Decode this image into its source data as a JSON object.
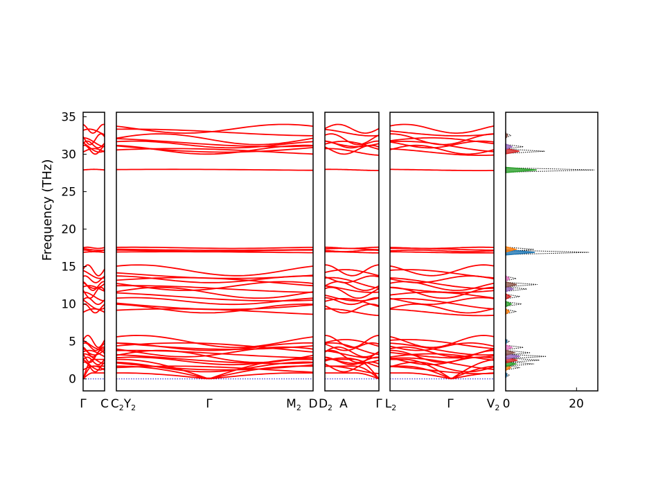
{
  "chart_data": {
    "type": "line",
    "title": "",
    "ylabel": "Frequency (THz)",
    "ylim": [
      -1.6,
      35.6
    ],
    "yticks": [
      0,
      5,
      10,
      15,
      20,
      25,
      30,
      35
    ],
    "band_color": "#ff0000",
    "zero_line_color": "#0000cc",
    "segments": [
      {
        "name": "seg1",
        "labels": [
          "Γ",
          "C"
        ]
      },
      {
        "name": "seg2",
        "labels": [
          "C2Y2",
          "Γ",
          "M2",
          "D"
        ]
      },
      {
        "name": "seg3",
        "labels": [
          "D2",
          "A",
          "Γ"
        ]
      },
      {
        "name": "seg4",
        "labels": [
          "L2",
          "Γ",
          "V2"
        ]
      }
    ],
    "branches": [
      {
        "name": "acoustic-1",
        "at_gamma": 0.0,
        "at_edge": 0.8
      },
      {
        "name": "acoustic-2",
        "at_gamma": 0.0,
        "at_edge": 1.3
      },
      {
        "name": "acoustic-3",
        "at_gamma": 0.0,
        "at_edge": 1.8
      },
      {
        "name": "low-optic",
        "values": [
          1.2,
          1.6,
          2.0,
          2.4,
          2.7,
          3.0,
          3.3,
          3.6,
          4.0,
          4.3,
          4.6,
          5.0
        ]
      },
      {
        "name": "mid-optic",
        "values": [
          8.9,
          9.4,
          10.0,
          10.4,
          11.0,
          11.5,
          12.0,
          12.4,
          12.8,
          13.3,
          14.0,
          14.5
        ]
      },
      {
        "name": "flat-17",
        "values": [
          16.9,
          17.1,
          17.3,
          17.5
        ]
      },
      {
        "name": "flat-28",
        "values": [
          27.9
        ]
      },
      {
        "name": "high-optic",
        "values": [
          30.3,
          30.6,
          31.0,
          31.3,
          31.6,
          32.0,
          32.9,
          33.4
        ]
      }
    ],
    "dos": {
      "xticks": [
        0,
        20
      ],
      "xlim": [
        0,
        26
      ],
      "peaks": [
        {
          "freq": 0.5,
          "value": 1.0
        },
        {
          "freq": 1.5,
          "value": 4.0
        },
        {
          "freq": 2.0,
          "value": 8.0
        },
        {
          "freq": 2.5,
          "value": 9.5
        },
        {
          "freq": 3.0,
          "value": 11.5
        },
        {
          "freq": 3.5,
          "value": 7.0
        },
        {
          "freq": 4.2,
          "value": 5.0
        },
        {
          "freq": 5.0,
          "value": 1.0
        },
        {
          "freq": 9.0,
          "value": 3.0
        },
        {
          "freq": 10.0,
          "value": 4.5
        },
        {
          "freq": 11.0,
          "value": 4.0
        },
        {
          "freq": 12.0,
          "value": 6.0
        },
        {
          "freq": 12.6,
          "value": 9.0
        },
        {
          "freq": 13.4,
          "value": 3.0
        },
        {
          "freq": 16.9,
          "value": 23.5
        },
        {
          "freq": 17.3,
          "value": 8.0
        },
        {
          "freq": 27.9,
          "value": 25.0
        },
        {
          "freq": 30.4,
          "value": 11.0
        },
        {
          "freq": 31.0,
          "value": 5.0
        },
        {
          "freq": 32.5,
          "value": 1.5
        }
      ],
      "projection_colors": [
        "#1f77b4",
        "#ff7f0e",
        "#2ca02c",
        "#d62728",
        "#9467bd",
        "#8c564b",
        "#e377c2"
      ]
    }
  }
}
